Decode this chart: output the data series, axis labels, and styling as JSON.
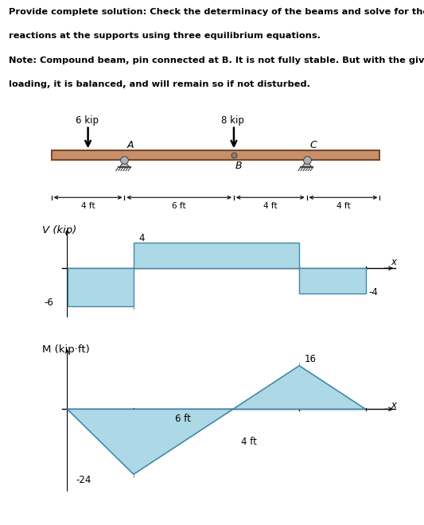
{
  "title_line1": "Provide complete solution: Check the determinacy of the beams and solve for the",
  "title_line2": "reactions at the supports using three equilibrium equations.",
  "title_line3": "Note: Compound beam, pin connected at B. It is not fully stable. But with the given",
  "title_line4": "loading, it is balanced, and will remain so if not disturbed.",
  "load1_label": "6 kip",
  "load2_label": "8 kip",
  "label_A": "A",
  "label_B": "B",
  "label_C": "C",
  "dim_labels": [
    "4 ft",
    "6 ft",
    "4 ft",
    "4 ft"
  ],
  "beam_color": "#C8906A",
  "beam_edge_color": "#7A4A2A",
  "shear_fill_color": "#ADD8E6",
  "shear_fill_edge": "#4488AA",
  "moment_fill_color": "#ADD8E6",
  "moment_fill_edge": "#4488AA",
  "V_label": "V (kip)",
  "M_label": "M (kip·ft)",
  "x_label": "x",
  "dim_6ft_label": "6 ft",
  "dim_4ft_label": "4 ft",
  "support_color": "#909090",
  "support_edge": "#404040"
}
